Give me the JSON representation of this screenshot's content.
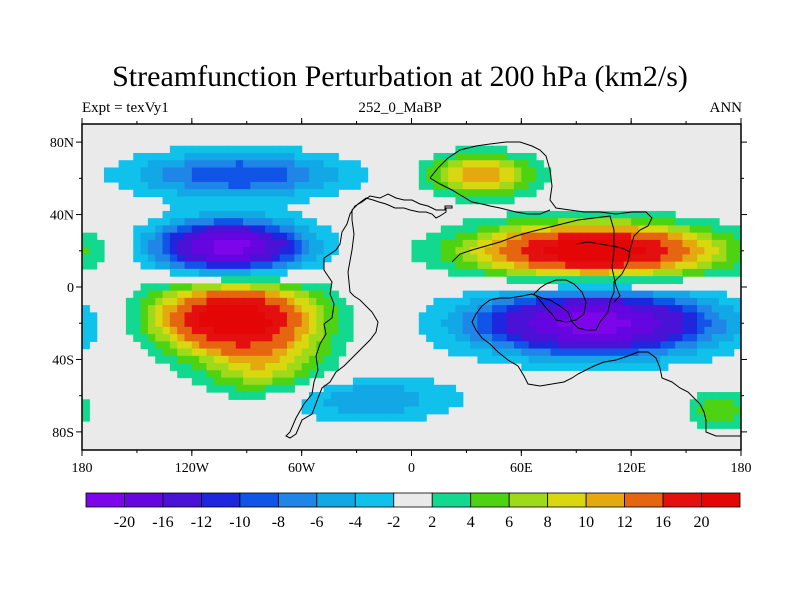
{
  "title": "Streamfunction Perturbation at 200 hPa (km2/s)",
  "subtitle_left": "Expt = texVy1",
  "subtitle_center": "252_0_MaBP",
  "subtitle_right": "ANN",
  "chart_data": {
    "type": "heatmap",
    "x_range": [
      -180,
      180
    ],
    "y_range": [
      -90,
      90
    ],
    "x_ticks": [
      {
        "value": -180,
        "label": "180"
      },
      {
        "value": -120,
        "label": "120W"
      },
      {
        "value": -60,
        "label": "60W"
      },
      {
        "value": 0,
        "label": "0"
      },
      {
        "value": 60,
        "label": "60E"
      },
      {
        "value": 120,
        "label": "120E"
      },
      {
        "value": 180,
        "label": "180"
      }
    ],
    "y_ticks": [
      {
        "value": 80,
        "label": "80N"
      },
      {
        "value": 40,
        "label": "40N"
      },
      {
        "value": 0,
        "label": "0"
      },
      {
        "value": -40,
        "label": "40S"
      },
      {
        "value": -80,
        "label": "80S"
      }
    ],
    "colorbar": {
      "boundaries": [
        -20,
        -16,
        -12,
        -10,
        -8,
        -6,
        -4,
        -2,
        2,
        4,
        6,
        8,
        10,
        12,
        16,
        20
      ],
      "colors": [
        "#7d05ea",
        "#6505e0",
        "#4a12d6",
        "#1e27de",
        "#1155e8",
        "#1f86e8",
        "#12a8e6",
        "#10c1ec",
        "#eaeaea",
        "#13d88f",
        "#4ed312",
        "#9fda1a",
        "#d9d70f",
        "#e4a90e",
        "#e66510",
        "#e40f0f",
        "#e40606"
      ]
    },
    "features": [
      {
        "name": "positive anomaly, tropical east Pacific south",
        "lon": -97,
        "lat": -17,
        "peak": 24,
        "sigma_lon": 30,
        "sigma_lat": 13
      },
      {
        "name": "positive anomaly, south America west",
        "lon": -80,
        "lat": -45,
        "peak": 8,
        "sigma_lon": 24,
        "sigma_lat": 12
      },
      {
        "name": "negative anomaly, north east Pacific",
        "lon": -100,
        "lat": 22,
        "peak": -22,
        "sigma_lon": 28,
        "sigma_lat": 10
      },
      {
        "name": "negative anomaly, north Pacific high latitudes",
        "lon": -95,
        "lat": 62,
        "peak": -10,
        "sigma_lon": 40,
        "sigma_lat": 9
      },
      {
        "name": "negative anomaly, south Atlantic high latitudes",
        "lon": -25,
        "lat": -62,
        "peak": -6,
        "sigma_lon": 35,
        "sigma_lat": 9
      },
      {
        "name": "positive anomaly, Asia subtropics",
        "lon": 100,
        "lat": 20,
        "peak": 24,
        "sigma_lon": 45,
        "sigma_lat": 10
      },
      {
        "name": "positive anomaly, north Africa high latitude",
        "lon": 38,
        "lat": 62,
        "peak": 12,
        "sigma_lon": 20,
        "sigma_lat": 8
      },
      {
        "name": "negative anomaly, Indian Ocean south",
        "lon": 100,
        "lat": -20,
        "peak": -22,
        "sigma_lon": 45,
        "sigma_lat": 12
      },
      {
        "name": "positive anomaly, south Pacific east",
        "lon": 168,
        "lat": -68,
        "peak": 6,
        "sigma_lon": 12,
        "sigma_lat": 8
      }
    ]
  }
}
